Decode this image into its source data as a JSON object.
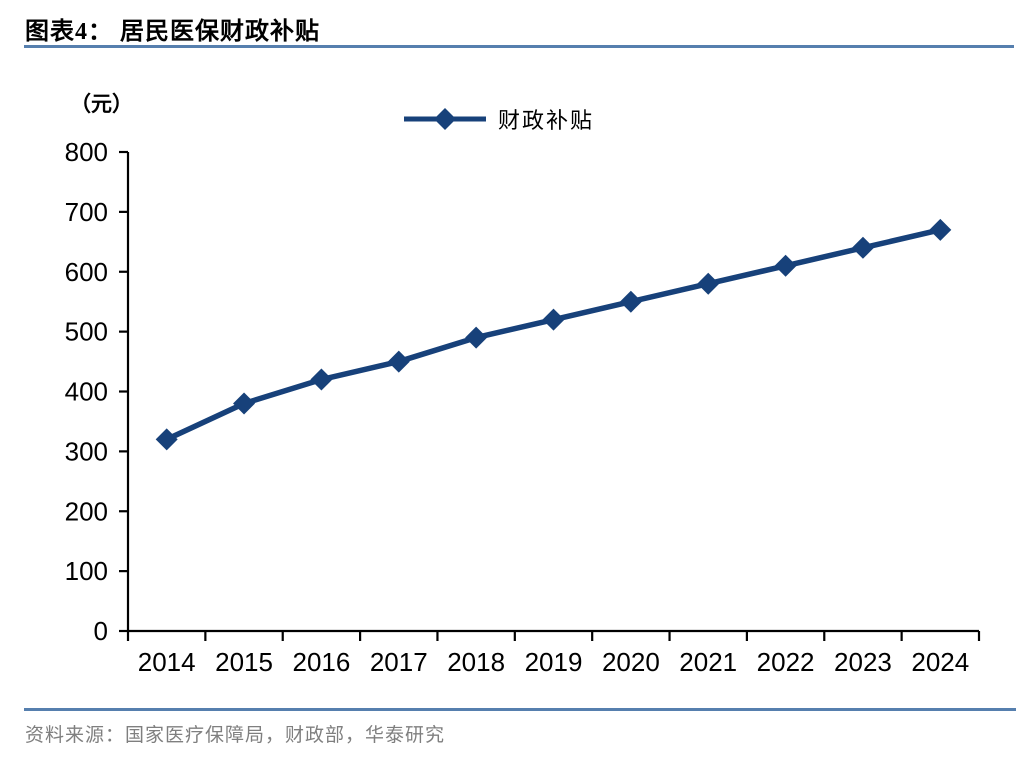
{
  "header": {
    "title": "图表4：  居民医保财政补贴"
  },
  "chart": {
    "unit_label": "（元）",
    "legend_label": "财政补贴"
  },
  "footer": {
    "source": "资料来源：国家医疗保障局，财政部，华泰研究"
  },
  "colors": {
    "series": "#17417a",
    "divider": "#567fae",
    "axis": "#000000",
    "tick_label": "#000000",
    "source_text": "#7f7f7f",
    "background": "#ffffff"
  },
  "chart_data": {
    "type": "line",
    "title": "居民医保财政补贴",
    "xlabel": "",
    "ylabel": "元",
    "categories": [
      "2014",
      "2015",
      "2016",
      "2017",
      "2018",
      "2019",
      "2020",
      "2021",
      "2022",
      "2023",
      "2024"
    ],
    "series": [
      {
        "name": "财政补贴",
        "values": [
          320,
          380,
          420,
          450,
          490,
          520,
          550,
          580,
          610,
          640,
          670
        ]
      }
    ],
    "ylim": [
      0,
      800
    ],
    "ytick_step": 100,
    "grid": false,
    "legend_position": "top-center",
    "marker": "diamond"
  }
}
